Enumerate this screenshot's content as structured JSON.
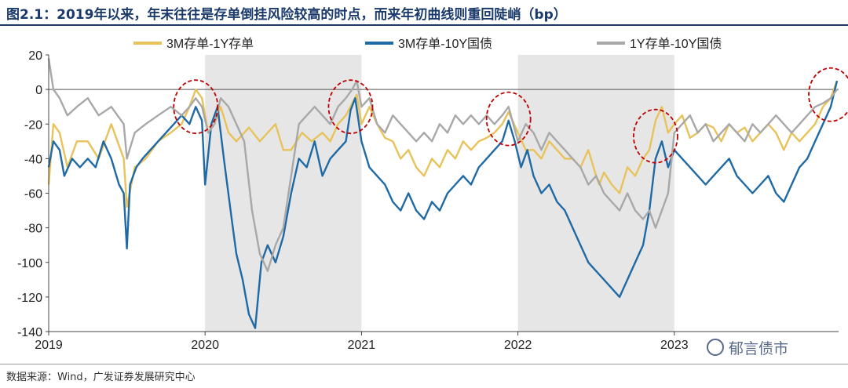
{
  "title": "图2.1：2019年以来，年末往往是存单倒挂风险较高的时点，而来年初曲线则重回陡峭（bp）",
  "source": "数据来源：Wind，广发证券发展研究中心",
  "watermark": "郁言债市",
  "chart_data": {
    "type": "line",
    "x_ticks": [
      "2019",
      "2020",
      "2021",
      "2022",
      "2023"
    ],
    "y_ticks": [
      "20",
      "0",
      "-20",
      "-40",
      "-60",
      "-80",
      "-100",
      "-120",
      "-140"
    ],
    "ylim": [
      -140,
      20
    ],
    "xlim": [
      2019.0,
      2024.05
    ],
    "shaded_periods": [
      [
        2020.0,
        2021.0
      ],
      [
        2022.0,
        2023.0
      ]
    ],
    "highlight_circles": [
      [
        2019.94,
        -10
      ],
      [
        2020.93,
        -10
      ],
      [
        2021.94,
        -17
      ],
      [
        2022.88,
        -27
      ],
      [
        2024.0,
        -3
      ]
    ],
    "colors": {
      "3M-1Y": "#e8c25a",
      "3M-10Y": "#1f6aa5",
      "1Y-10Y": "#a8a8a8"
    },
    "series": [
      {
        "name": "3M存单-1Y存单",
        "key": "3M-1Y",
        "x": [
          2019.0,
          2019.03,
          2019.07,
          2019.12,
          2019.18,
          2019.25,
          2019.32,
          2019.4,
          2019.48,
          2019.5,
          2019.55,
          2019.62,
          2019.7,
          2019.78,
          2019.85,
          2019.9,
          2019.94,
          2019.98,
          2020.02,
          2020.06,
          2020.1,
          2020.15,
          2020.2,
          2020.28,
          2020.35,
          2020.4,
          2020.45,
          2020.5,
          2020.55,
          2020.62,
          2020.68,
          2020.75,
          2020.8,
          2020.85,
          2020.9,
          2020.94,
          2020.97,
          2021.0,
          2021.05,
          2021.1,
          2021.15,
          2021.2,
          2021.25,
          2021.3,
          2021.35,
          2021.4,
          2021.45,
          2021.5,
          2021.55,
          2021.6,
          2021.65,
          2021.7,
          2021.75,
          2021.8,
          2021.85,
          2021.9,
          2021.94,
          2022.0,
          2022.05,
          2022.1,
          2022.15,
          2022.2,
          2022.25,
          2022.3,
          2022.35,
          2022.4,
          2022.45,
          2022.5,
          2022.52,
          2022.55,
          2022.6,
          2022.65,
          2022.7,
          2022.75,
          2022.8,
          2022.84,
          2022.88,
          2022.92,
          2022.96,
          2023.0,
          2023.05,
          2023.1,
          2023.15,
          2023.2,
          2023.25,
          2023.3,
          2023.35,
          2023.4,
          2023.45,
          2023.5,
          2023.55,
          2023.6,
          2023.65,
          2023.7,
          2023.75,
          2023.8,
          2023.85,
          2023.9,
          2023.95,
          2024.0,
          2024.04
        ],
        "y": [
          -55,
          -20,
          -25,
          -45,
          -30,
          -30,
          -40,
          -20,
          -40,
          -68,
          -45,
          -40,
          -30,
          -25,
          -20,
          -10,
          0,
          -5,
          -25,
          -20,
          -10,
          -25,
          -30,
          -22,
          -30,
          -25,
          -20,
          -35,
          -35,
          -25,
          -30,
          -25,
          -30,
          -20,
          -15,
          -8,
          -3,
          -20,
          -10,
          -20,
          -28,
          -30,
          -40,
          -35,
          -45,
          -50,
          -40,
          -45,
          -35,
          -40,
          -30,
          -35,
          -30,
          -28,
          -25,
          -20,
          -13,
          -25,
          -35,
          -35,
          -40,
          -30,
          -35,
          -40,
          -40,
          -45,
          -35,
          -50,
          -55,
          -48,
          -55,
          -60,
          -45,
          -50,
          -40,
          -35,
          -18,
          -10,
          -25,
          -20,
          -15,
          -28,
          -25,
          -20,
          -22,
          -30,
          -20,
          -25,
          -22,
          -30,
          -25,
          -20,
          -25,
          -35,
          -25,
          -30,
          -25,
          -20,
          -10,
          -5,
          5
        ]
      },
      {
        "name": "3M存单-10Y国债",
        "key": "3M-10Y",
        "x": [
          2019.0,
          2019.03,
          2019.07,
          2019.1,
          2019.15,
          2019.2,
          2019.25,
          2019.3,
          2019.35,
          2019.4,
          2019.45,
          2019.48,
          2019.5,
          2019.52,
          2019.56,
          2019.6,
          2019.65,
          2019.7,
          2019.75,
          2019.8,
          2019.85,
          2019.9,
          2019.94,
          2019.98,
          2020.0,
          2020.04,
          2020.08,
          2020.12,
          2020.17,
          2020.2,
          2020.24,
          2020.28,
          2020.32,
          2020.36,
          2020.4,
          2020.45,
          2020.5,
          2020.55,
          2020.6,
          2020.65,
          2020.7,
          2020.75,
          2020.8,
          2020.85,
          2020.9,
          2020.93,
          2020.96,
          2021.0,
          2021.05,
          2021.1,
          2021.15,
          2021.2,
          2021.25,
          2021.3,
          2021.35,
          2021.4,
          2021.45,
          2021.5,
          2021.55,
          2021.6,
          2021.65,
          2021.7,
          2021.75,
          2021.8,
          2021.85,
          2021.9,
          2021.94,
          2021.98,
          2022.02,
          2022.06,
          2022.1,
          2022.15,
          2022.2,
          2022.25,
          2022.3,
          2022.35,
          2022.4,
          2022.45,
          2022.5,
          2022.55,
          2022.6,
          2022.65,
          2022.7,
          2022.75,
          2022.8,
          2022.84,
          2022.88,
          2022.92,
          2022.96,
          2023.0,
          2023.05,
          2023.1,
          2023.15,
          2023.2,
          2023.25,
          2023.3,
          2023.35,
          2023.4,
          2023.45,
          2023.5,
          2023.55,
          2023.6,
          2023.65,
          2023.7,
          2023.75,
          2023.8,
          2023.85,
          2023.9,
          2023.95,
          2024.0,
          2024.04
        ],
        "y": [
          -45,
          -30,
          -35,
          -50,
          -40,
          -45,
          -40,
          -45,
          -30,
          -40,
          -55,
          -60,
          -92,
          -55,
          -45,
          -40,
          -35,
          -30,
          -25,
          -20,
          -15,
          -20,
          -10,
          -18,
          -55,
          -20,
          -10,
          -40,
          -75,
          -95,
          -110,
          -130,
          -138,
          -100,
          -90,
          -100,
          -85,
          -60,
          -40,
          -45,
          -30,
          -50,
          -40,
          -35,
          -30,
          -12,
          -5,
          -30,
          -45,
          -50,
          -55,
          -65,
          -70,
          -60,
          -70,
          -75,
          -65,
          -70,
          -60,
          -55,
          -50,
          -55,
          -45,
          -40,
          -35,
          -30,
          -18,
          -30,
          -45,
          -35,
          -50,
          -60,
          -55,
          -65,
          -70,
          -80,
          -90,
          -100,
          -105,
          -110,
          -115,
          -120,
          -110,
          -100,
          -90,
          -70,
          -40,
          -30,
          -45,
          -35,
          -40,
          -45,
          -50,
          -55,
          -50,
          -45,
          -40,
          -50,
          -55,
          -60,
          -55,
          -50,
          -60,
          -65,
          -55,
          -45,
          -40,
          -30,
          -20,
          -10,
          5
        ]
      },
      {
        "name": "1Y存单-10Y国债",
        "key": "1Y-10Y",
        "x": [
          2019.0,
          2019.03,
          2019.07,
          2019.12,
          2019.18,
          2019.25,
          2019.32,
          2019.4,
          2019.48,
          2019.5,
          2019.55,
          2019.62,
          2019.7,
          2019.78,
          2019.85,
          2019.9,
          2019.94,
          2019.98,
          2020.02,
          2020.06,
          2020.1,
          2020.15,
          2020.2,
          2020.25,
          2020.3,
          2020.35,
          2020.4,
          2020.45,
          2020.5,
          2020.55,
          2020.6,
          2020.65,
          2020.7,
          2020.75,
          2020.8,
          2020.85,
          2020.9,
          2020.94,
          2020.97,
          2021.0,
          2021.05,
          2021.1,
          2021.15,
          2021.2,
          2021.25,
          2021.3,
          2021.35,
          2021.4,
          2021.45,
          2021.5,
          2021.55,
          2021.6,
          2021.65,
          2021.7,
          2021.75,
          2021.8,
          2021.85,
          2021.9,
          2021.94,
          2022.0,
          2022.05,
          2022.1,
          2022.15,
          2022.2,
          2022.25,
          2022.3,
          2022.35,
          2022.4,
          2022.45,
          2022.5,
          2022.55,
          2022.6,
          2022.65,
          2022.7,
          2022.75,
          2022.8,
          2022.84,
          2022.88,
          2022.92,
          2022.96,
          2023.0,
          2023.05,
          2023.1,
          2023.15,
          2023.2,
          2023.25,
          2023.3,
          2023.35,
          2023.4,
          2023.45,
          2023.5,
          2023.55,
          2023.6,
          2023.65,
          2023.7,
          2023.75,
          2023.8,
          2023.85,
          2023.9,
          2023.95,
          2024.0,
          2024.04
        ],
        "y": [
          18,
          0,
          -5,
          -15,
          -10,
          -5,
          -15,
          -10,
          -20,
          -40,
          -25,
          -20,
          -15,
          -10,
          -15,
          -10,
          -5,
          -10,
          -25,
          -20,
          -5,
          -10,
          -20,
          -30,
          -70,
          -95,
          -105,
          -90,
          -80,
          -50,
          -20,
          -15,
          -10,
          -15,
          -20,
          -10,
          -5,
          0,
          5,
          -10,
          -5,
          -20,
          -25,
          -15,
          -20,
          -25,
          -30,
          -25,
          -30,
          -20,
          -25,
          -15,
          -20,
          -15,
          -20,
          -15,
          -20,
          -15,
          -10,
          -30,
          -20,
          -25,
          -35,
          -25,
          -30,
          -35,
          -40,
          -45,
          -55,
          -50,
          -60,
          -65,
          -70,
          -60,
          -70,
          -75,
          -70,
          -80,
          -70,
          -60,
          -25,
          -20,
          -15,
          -25,
          -20,
          -30,
          -25,
          -20,
          -25,
          -30,
          -20,
          -25,
          -20,
          -15,
          -20,
          -25,
          -20,
          -15,
          -10,
          -8,
          -5,
          0
        ]
      }
    ]
  }
}
